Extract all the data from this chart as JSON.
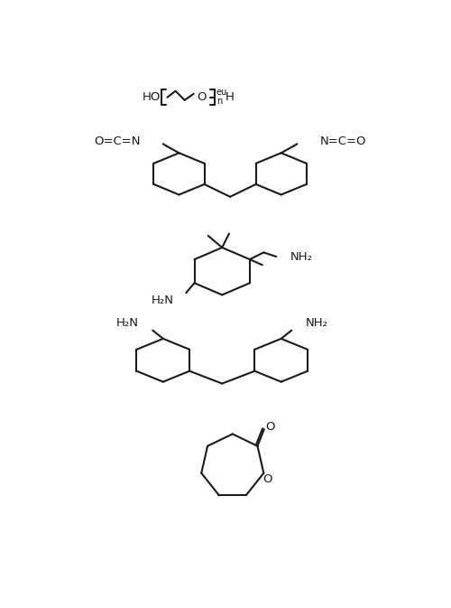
{
  "bg": "#ffffff",
  "lc": "#1a1a1a",
  "lw": 1.5,
  "fs": 9.5,
  "fs_small": 7.0,
  "figsize": [
    5.0,
    6.73
  ],
  "dpi": 100,
  "labels": {
    "HO": "HO",
    "H": "H",
    "O": "O",
    "eu": "eu",
    "n": "n",
    "NCO_left": "O=C=N",
    "NCO_right": "N=C=O",
    "NH2": "NH₂",
    "H2N": "H₂N",
    "CO_O": "O"
  }
}
